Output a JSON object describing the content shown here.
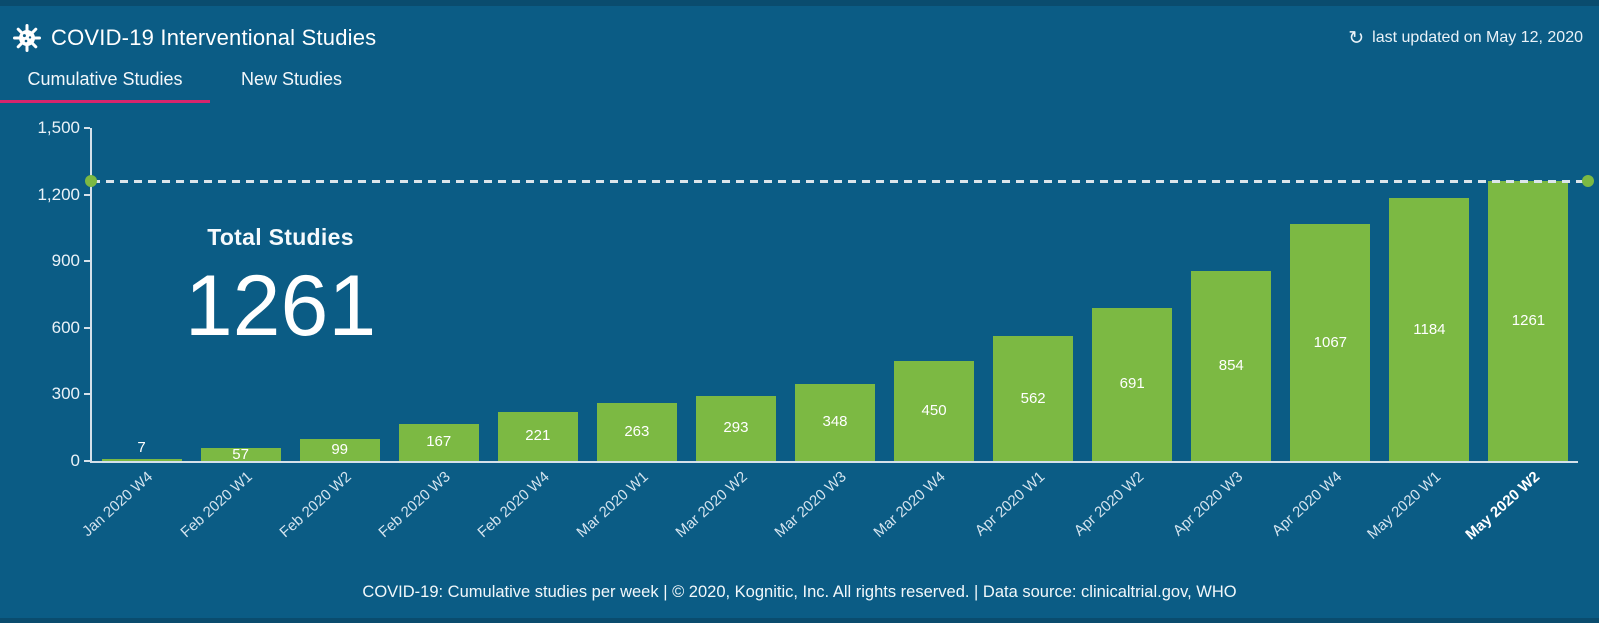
{
  "header": {
    "title": "COVID-19 Interventional Studies",
    "icon": "virus-icon",
    "last_updated": "last updated on May 12, 2020"
  },
  "tabs": [
    {
      "label": "Cumulative Studies",
      "active": true
    },
    {
      "label": "New Studies",
      "active": false
    }
  ],
  "annotation": {
    "label": "Total Studies",
    "value": "1261"
  },
  "chart_data": {
    "type": "bar",
    "title": "COVID-19: Cumulative studies per week",
    "xlabel": "",
    "ylabel": "",
    "categories": [
      "Jan 2020 W4",
      "Feb 2020 W1",
      "Feb 2020 W2",
      "Feb 2020 W3",
      "Feb 2020 W4",
      "Mar 2020 W1",
      "Mar 2020 W2",
      "Mar 2020 W3",
      "Mar 2020 W4",
      "Apr 2020 W1",
      "Apr 2020 W2",
      "Apr 2020 W3",
      "Apr 2020 W4",
      "May 2020 W1",
      "May 2020 W2"
    ],
    "values": [
      7,
      57,
      99,
      167,
      221,
      263,
      293,
      348,
      450,
      562,
      691,
      854,
      1067,
      1184,
      1261
    ],
    "ylim": [
      0,
      1500
    ],
    "yticks": [
      0,
      300,
      600,
      900,
      1200,
      1500
    ],
    "ytick_labels": [
      "0",
      "300",
      "600",
      "900",
      "1,200",
      "1,500"
    ],
    "grid": false,
    "legend": false,
    "highlight_last_category": true,
    "reference_line": {
      "value": 1261,
      "style": "dashed",
      "end_dots": true
    },
    "colors": {
      "bar": "#7CB943",
      "background": "#0B5C85",
      "axis": "#D5E1EA",
      "accent_tab_underline": "#D7256D",
      "value_label": "#FFFFFF"
    }
  },
  "footer": {
    "text": "COVID-19: Cumulative studies per week  |  © 2020, Kognitic, Inc. All rights reserved. | Data source: clinicaltrial.gov, WHO"
  }
}
